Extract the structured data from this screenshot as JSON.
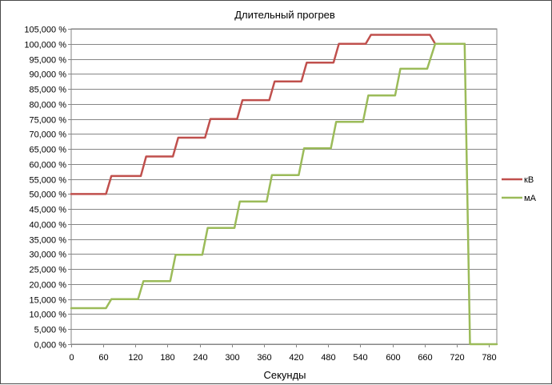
{
  "chart_data": {
    "type": "line",
    "title": "Длительный прогрев",
    "xlabel": "Секунды",
    "ylabel": "",
    "xlim": [
      0,
      795
    ],
    "ylim": [
      0,
      105
    ],
    "x_ticks": [
      0,
      60,
      120,
      180,
      240,
      300,
      360,
      420,
      480,
      540,
      600,
      660,
      720,
      780
    ],
    "y_ticks": [
      {
        "value": 0,
        "label": "0,000 %"
      },
      {
        "value": 5,
        "label": "5,000 %"
      },
      {
        "value": 10,
        "label": "10,000 %"
      },
      {
        "value": 15,
        "label": "15,000 %"
      },
      {
        "value": 20,
        "label": "20,000 %"
      },
      {
        "value": 25,
        "label": "25,000 %"
      },
      {
        "value": 30,
        "label": "30,000 %"
      },
      {
        "value": 35,
        "label": "35,000 %"
      },
      {
        "value": 40,
        "label": "40,000 %"
      },
      {
        "value": 45,
        "label": "45,000 %"
      },
      {
        "value": 50,
        "label": "50,000 %"
      },
      {
        "value": 55,
        "label": "55,000 %"
      },
      {
        "value": 60,
        "label": "60,000 %"
      },
      {
        "value": 65,
        "label": "65,000 %"
      },
      {
        "value": 70,
        "label": "70,000 %"
      },
      {
        "value": 75,
        "label": "75,000 %"
      },
      {
        "value": 80,
        "label": "80,000 %"
      },
      {
        "value": 85,
        "label": "85,000 %"
      },
      {
        "value": 90,
        "label": "90,000 %"
      },
      {
        "value": 95,
        "label": "95,000 %"
      },
      {
        "value": 100,
        "label": "100,000 %"
      },
      {
        "value": 105,
        "label": "105,000 %"
      }
    ],
    "grid": "horizontal",
    "legend_position": "right",
    "series": [
      {
        "name": "кВ",
        "color": "#c0504d",
        "x": [
          0,
          65,
          75,
          130,
          140,
          190,
          200,
          250,
          260,
          310,
          320,
          370,
          380,
          430,
          440,
          490,
          500,
          550,
          560,
          670,
          680,
          735
        ],
        "y": [
          50,
          50,
          56,
          56,
          62.5,
          62.5,
          68.75,
          68.75,
          75,
          75,
          81.25,
          81.25,
          87.5,
          87.5,
          93.75,
          93.75,
          100,
          100,
          103,
          103,
          100,
          100
        ]
      },
      {
        "name": "мА",
        "color": "#9bbb59",
        "x": [
          0,
          65,
          75,
          125,
          135,
          185,
          195,
          245,
          255,
          305,
          315,
          365,
          375,
          425,
          435,
          485,
          495,
          545,
          555,
          605,
          615,
          665,
          680,
          735,
          745,
          795
        ],
        "y": [
          12,
          12,
          15,
          15,
          21,
          21,
          29.8,
          29.8,
          38.7,
          38.7,
          47.5,
          47.5,
          56.3,
          56.3,
          65.2,
          65.2,
          74,
          74,
          82.8,
          82.8,
          91.7,
          91.7,
          100,
          100,
          0,
          0
        ]
      }
    ]
  }
}
